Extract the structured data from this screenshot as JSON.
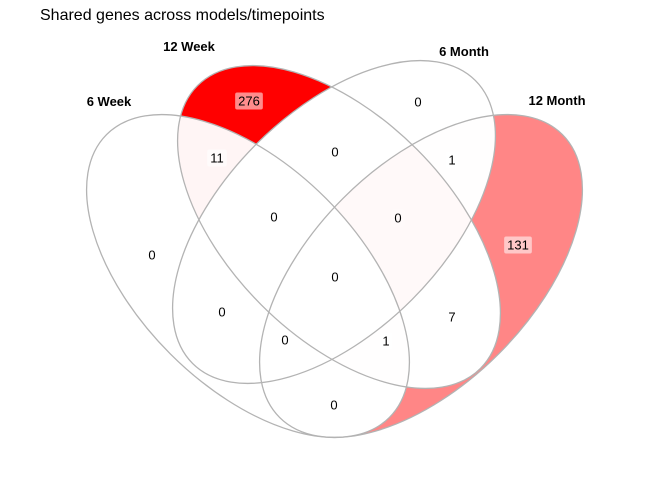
{
  "title": "Shared genes across models/timepoints",
  "colors": {
    "outline": "#b3b3b3",
    "fill_max": "#ff0000",
    "fill_min": "#ffffff",
    "label_box": "#ffffff"
  },
  "sets": [
    {
      "key": "w6",
      "name": "6 Week"
    },
    {
      "key": "w12",
      "name": "12 Week"
    },
    {
      "key": "m6",
      "name": "6 Month"
    },
    {
      "key": "m12",
      "name": "12 Month"
    }
  ],
  "chart_data": {
    "type": "venn",
    "regions": [
      {
        "id": "6W",
        "sets": [
          "6 Week"
        ],
        "count": 0
      },
      {
        "id": "12W",
        "sets": [
          "12 Week"
        ],
        "count": 276
      },
      {
        "id": "6M",
        "sets": [
          "6 Month"
        ],
        "count": 0
      },
      {
        "id": "12M",
        "sets": [
          "12 Month"
        ],
        "count": 131
      },
      {
        "id": "6W-12W",
        "sets": [
          "6 Week",
          "12 Week"
        ],
        "count": 11
      },
      {
        "id": "6W-6M",
        "sets": [
          "6 Week",
          "6 Month"
        ],
        "count": 0
      },
      {
        "id": "6W-12M",
        "sets": [
          "6 Week",
          "12 Month"
        ],
        "count": 0
      },
      {
        "id": "12W-6M",
        "sets": [
          "12 Week",
          "6 Month"
        ],
        "count": 0
      },
      {
        "id": "12W-12M",
        "sets": [
          "12 Week",
          "12 Month"
        ],
        "count": 0
      },
      {
        "id": "6M-12M",
        "sets": [
          "6 Month",
          "12 Month"
        ],
        "count": 1
      },
      {
        "id": "6W-12W-6M",
        "sets": [
          "6 Week",
          "12 Week",
          "6 Month"
        ],
        "count": 0
      },
      {
        "id": "6W-12W-12M",
        "sets": [
          "6 Week",
          "12 Week",
          "12 Month"
        ],
        "count": 1
      },
      {
        "id": "6W-6M-12M",
        "sets": [
          "6 Week",
          "6 Month",
          "12 Month"
        ],
        "count": 0
      },
      {
        "id": "12W-6M-12M",
        "sets": [
          "12 Week",
          "6 Month",
          "12 Month"
        ],
        "count": 7
      },
      {
        "id": "6W-12W-6M-12M",
        "sets": [
          "6 Week",
          "12 Week",
          "6 Month",
          "12 Month"
        ],
        "count": 0
      }
    ]
  }
}
